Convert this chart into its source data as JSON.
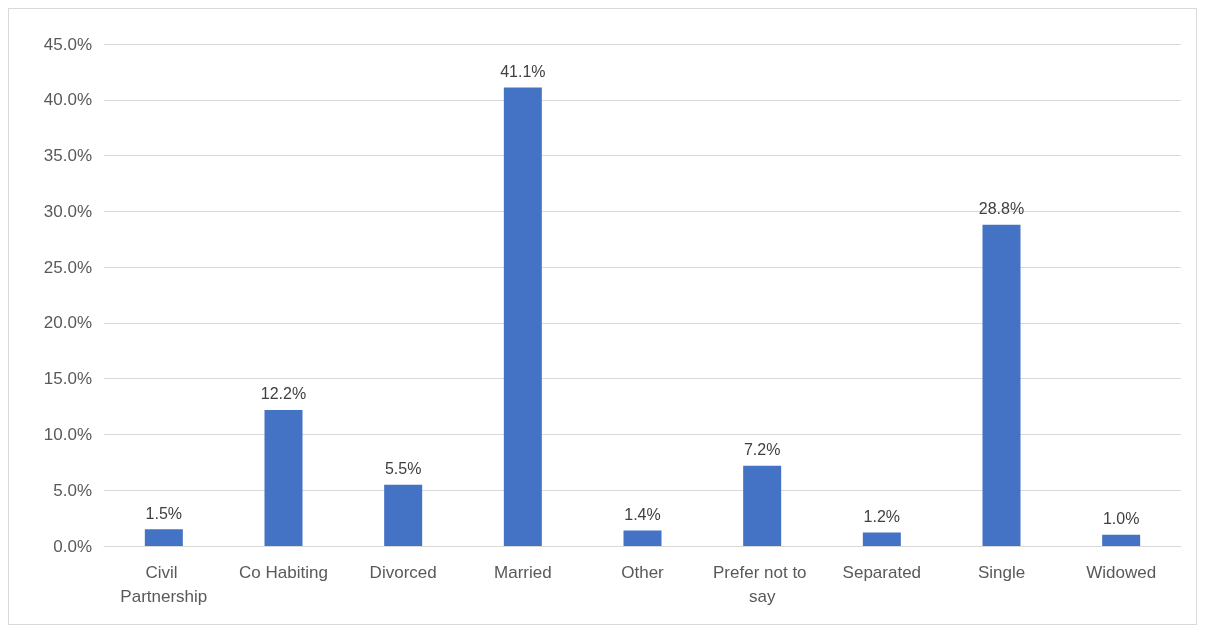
{
  "chart_data": {
    "type": "bar",
    "categories": [
      "Civil Partnership",
      "Co Habiting",
      "Divorced",
      "Married",
      "Other",
      "Prefer not to say",
      "Separated",
      "Single",
      "Widowed"
    ],
    "values": [
      1.5,
      12.2,
      5.5,
      41.1,
      1.4,
      7.2,
      1.2,
      28.8,
      1.0
    ],
    "value_labels": [
      "1.5%",
      "12.2%",
      "5.5%",
      "41.1%",
      "1.4%",
      "7.2%",
      "1.2%",
      "28.8%",
      "1.0%"
    ],
    "color": "#4472c4",
    "ylim": [
      0,
      45
    ],
    "yticks": [
      {
        "value": 0,
        "label": "0.0%"
      },
      {
        "value": 5,
        "label": "5.0%"
      },
      {
        "value": 10,
        "label": "10.0%"
      },
      {
        "value": 15,
        "label": "15.0%"
      },
      {
        "value": 20,
        "label": "20.0%"
      },
      {
        "value": 25,
        "label": "25.0%"
      },
      {
        "value": 30,
        "label": "30.0%"
      },
      {
        "value": 35,
        "label": "35.0%"
      },
      {
        "value": 40,
        "label": "40.0%"
      },
      {
        "value": 45,
        "label": "45.0%"
      }
    ],
    "grid": "y"
  }
}
